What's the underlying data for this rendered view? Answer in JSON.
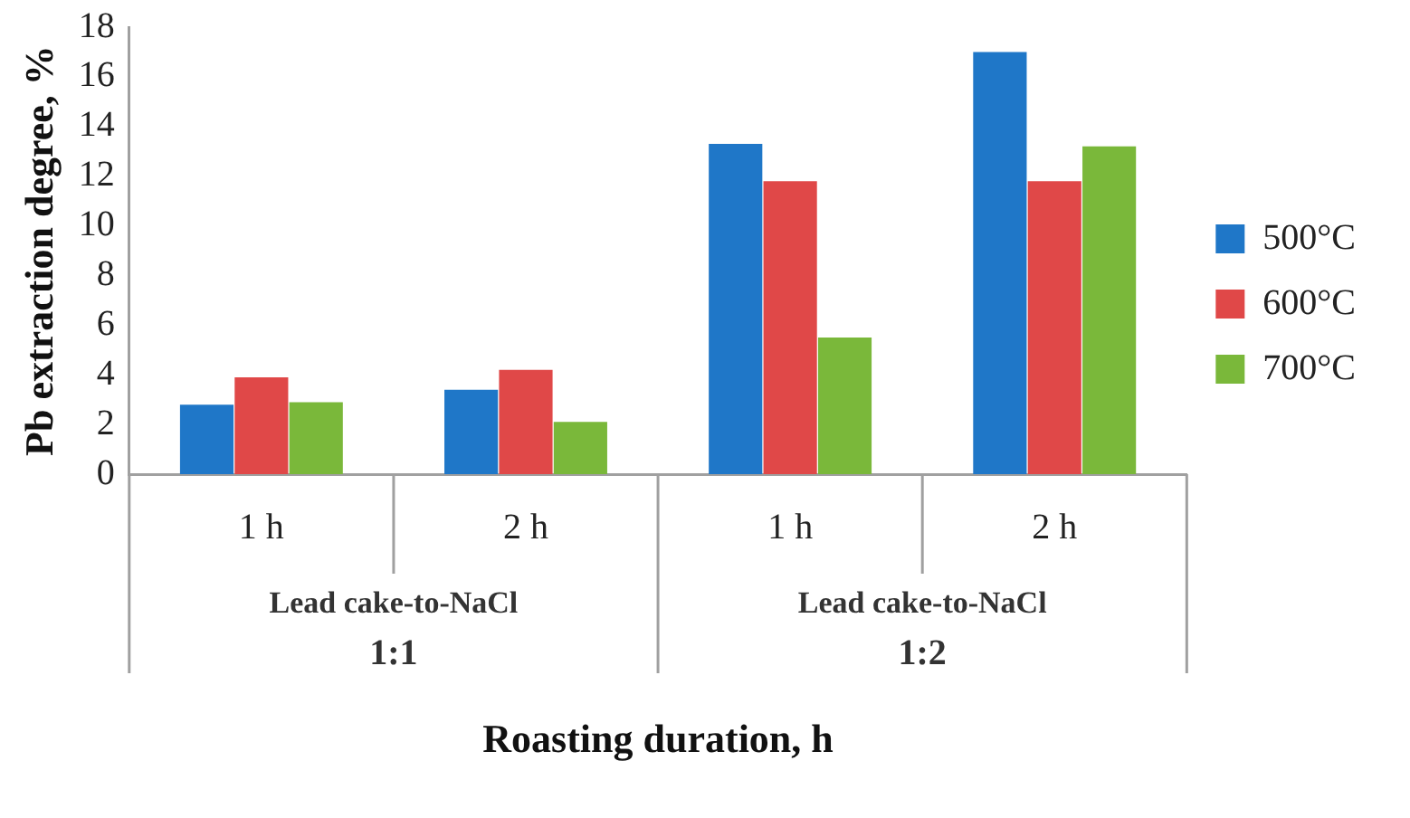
{
  "chart_data": {
    "type": "bar",
    "categories": [
      "1 h",
      "2 h",
      "1 h",
      "2 h"
    ],
    "series": [
      {
        "name": "500°C",
        "color": "#1f77c8",
        "values": [
          2.8,
          3.4,
          13.3,
          17.0
        ]
      },
      {
        "name": "600°C",
        "color": "#e04848",
        "values": [
          3.9,
          4.2,
          11.8,
          11.8
        ]
      },
      {
        "name": "700°C",
        "color": "#7ab83a",
        "values": [
          2.9,
          2.1,
          5.5,
          13.2
        ]
      }
    ],
    "ylim": [
      0,
      18
    ],
    "yticks": [
      0,
      2,
      4,
      6,
      8,
      10,
      12,
      14,
      16,
      18
    ],
    "xlabel": "Roasting duration, h",
    "ylabel": "Pb extraction degree, %",
    "annotations": [
      "Lead cake-to-NaCl",
      "1:1",
      "Lead cake-to-NaCl",
      "1:2"
    ],
    "grid": false,
    "legend": "right"
  }
}
